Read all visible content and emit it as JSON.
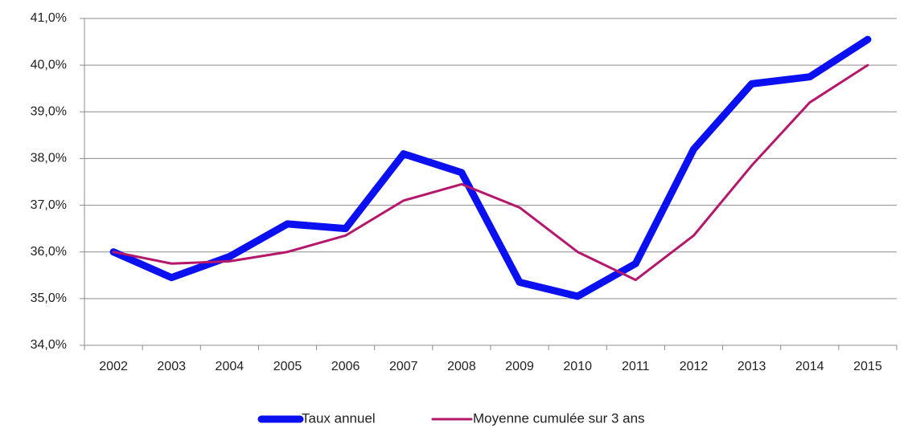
{
  "chart_data": {
    "type": "line",
    "categories": [
      "2002",
      "2003",
      "2004",
      "2005",
      "2006",
      "2007",
      "2008",
      "2009",
      "2010",
      "2011",
      "2012",
      "2013",
      "2014",
      "2015"
    ],
    "series": [
      {
        "name": "Taux annuel",
        "color": "#0a10f0",
        "values": [
          36.0,
          35.45,
          35.9,
          36.6,
          36.5,
          38.1,
          37.7,
          35.35,
          35.05,
          35.75,
          38.2,
          39.6,
          39.75,
          40.55
        ]
      },
      {
        "name": "Moyenne cumulée sur 3 ans",
        "color": "#b5176b",
        "values": [
          36.0,
          35.75,
          35.8,
          36.0,
          36.35,
          37.1,
          37.45,
          36.95,
          36.0,
          35.4,
          36.35,
          37.85,
          39.2,
          40.0
        ]
      }
    ],
    "ylim": [
      34,
      41
    ],
    "yticks": [
      {
        "value": 34,
        "label": "34,0%"
      },
      {
        "value": 35,
        "label": "35,0%"
      },
      {
        "value": 36,
        "label": "36,0%"
      },
      {
        "value": 37,
        "label": "37,0%"
      },
      {
        "value": 38,
        "label": "38,0%"
      },
      {
        "value": 39,
        "label": "39,0%"
      },
      {
        "value": 40,
        "label": "40,0%"
      },
      {
        "value": 41,
        "label": "41,0%"
      }
    ],
    "grid": true,
    "legend": "bottom"
  }
}
